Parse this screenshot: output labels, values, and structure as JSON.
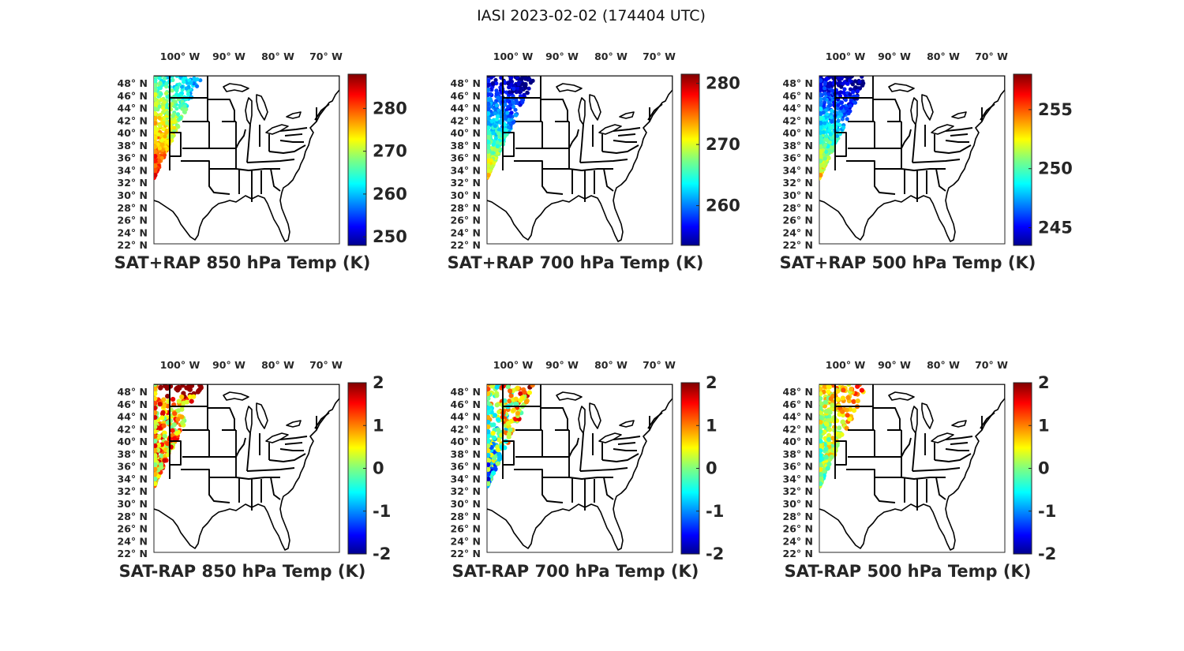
{
  "figure_title": "IASI 2023-02-02 (174404 UTC)",
  "lon_labels": [
    "100",
    "90",
    "80",
    "70"
  ],
  "lon_suffix": "W",
  "lat_labels": [
    "48",
    "46",
    "44",
    "42",
    "40",
    "38",
    "36",
    "34",
    "32",
    "30",
    "28",
    "26",
    "24",
    "22"
  ],
  "lat_suffix": "N",
  "degree_symbol": "°",
  "colormap": "jet",
  "panels": [
    {
      "id": "sat-rap-sum-850",
      "title": "SAT+RAP 850 hPa Temp (K)",
      "colorbar": {
        "min": 248,
        "max": 288,
        "ticks": [
          "250",
          "260",
          "270",
          "280"
        ]
      },
      "swath_pattern": "warm-south"
    },
    {
      "id": "sat-rap-sum-700",
      "title": "SAT+RAP 700 hPa Temp (K)",
      "colorbar": {
        "min": 253.5,
        "max": 281.5,
        "ticks": [
          "260",
          "270",
          "280"
        ]
      },
      "swath_pattern": "cold-north"
    },
    {
      "id": "sat-rap-sum-500",
      "title": "SAT+RAP 500 hPa Temp (K)",
      "colorbar": {
        "min": 243.5,
        "max": 258,
        "ticks": [
          "245",
          "250",
          "255"
        ]
      },
      "swath_pattern": "cold-north"
    },
    {
      "id": "sat-rap-diff-850",
      "title": "SAT-RAP 850 hPa Temp (K)",
      "colorbar": {
        "min": -2,
        "max": 2,
        "ticks": [
          "-2",
          "-1",
          "0",
          "1",
          "2"
        ]
      },
      "swath_pattern": "diff-hot"
    },
    {
      "id": "sat-rap-diff-700",
      "title": "SAT-RAP 700 hPa Temp (K)",
      "colorbar": {
        "min": -2,
        "max": 2,
        "ticks": [
          "-2",
          "-1",
          "0",
          "1",
          "2"
        ]
      },
      "swath_pattern": "diff-mixed"
    },
    {
      "id": "sat-rap-diff-500",
      "title": "SAT-RAP 500 hPa Temp (K)",
      "colorbar": {
        "min": -2,
        "max": 2,
        "ticks": [
          "-2",
          "-1",
          "0",
          "1",
          "2"
        ]
      },
      "swath_pattern": "diff-warm"
    }
  ]
}
